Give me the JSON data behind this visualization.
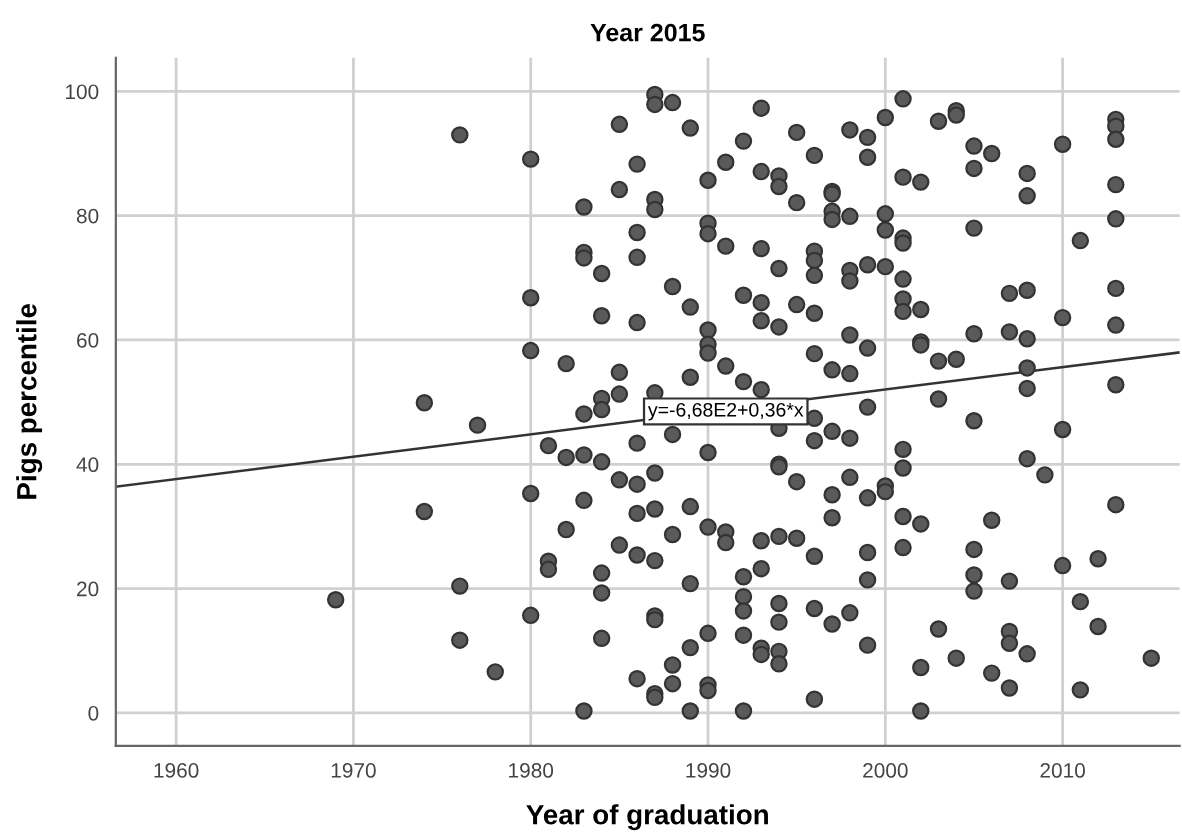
{
  "chart_data": {
    "type": "scatter",
    "title": "Year 2015",
    "xlabel": "Year of graduation",
    "ylabel": "Pigs percentile",
    "xlim": [
      1956.6,
      2016.6
    ],
    "xticks": [
      1960,
      1970,
      1980,
      1990,
      2000,
      2010
    ],
    "ylim": [
      -5.3,
      105.4
    ],
    "yticks": [
      0,
      20,
      40,
      60,
      80,
      100
    ],
    "grid": true,
    "legend": false,
    "annotations": [
      {
        "text": "y=-6,68E2+0,36*x",
        "x": 1991,
        "y": 48.5
      }
    ],
    "series": [
      {
        "marker": "circle",
        "color": "#5a5a5a",
        "x": [
          1969,
          1974,
          1974,
          1976,
          1976,
          1976,
          1977,
          1978,
          1980,
          1980,
          1980,
          1980,
          1980,
          1981,
          1981,
          1981,
          1982,
          1982,
          1982,
          1983,
          1983,
          1983,
          1983,
          1983,
          1983,
          1983,
          1984,
          1984,
          1984,
          1984,
          1984,
          1984,
          1984,
          1984,
          1985,
          1985,
          1985,
          1985,
          1985,
          1985,
          1986,
          1986,
          1986,
          1986,
          1986,
          1986,
          1986,
          1986,
          1986,
          1987,
          1987,
          1987,
          1987,
          1987,
          1987,
          1987,
          1987,
          1987,
          1987,
          1987,
          1987,
          1988,
          1988,
          1988,
          1988,
          1988,
          1988,
          1989,
          1989,
          1989,
          1989,
          1989,
          1989,
          1989,
          1990,
          1990,
          1990,
          1990,
          1990,
          1990,
          1990,
          1990,
          1990,
          1990,
          1990,
          1991,
          1991,
          1991,
          1991,
          1991,
          1992,
          1992,
          1992,
          1992,
          1992,
          1992,
          1992,
          1992,
          1993,
          1993,
          1993,
          1993,
          1993,
          1993,
          1993,
          1993,
          1993,
          1993,
          1994,
          1994,
          1994,
          1994,
          1994,
          1994,
          1994,
          1994,
          1994,
          1994,
          1994,
          1994,
          1995,
          1995,
          1995,
          1995,
          1995,
          1996,
          1996,
          1996,
          1996,
          1996,
          1996,
          1996,
          1996,
          1996,
          1996,
          1996,
          1997,
          1997,
          1997,
          1997,
          1997,
          1997,
          1997,
          1997,
          1997,
          1998,
          1998,
          1998,
          1998,
          1998,
          1998,
          1998,
          1998,
          1998,
          1999,
          1999,
          1999,
          1999,
          1999,
          1999,
          1999,
          1999,
          1999,
          2000,
          2000,
          2000,
          2000,
          2000,
          2000,
          2001,
          2001,
          2001,
          2001,
          2001,
          2001,
          2001,
          2001,
          2001,
          2001,
          2001,
          2002,
          2002,
          2002,
          2002,
          2002,
          2002,
          2002,
          2003,
          2003,
          2003,
          2003,
          2004,
          2004,
          2004,
          2004,
          2005,
          2005,
          2005,
          2005,
          2005,
          2005,
          2005,
          2005,
          2006,
          2006,
          2006,
          2007,
          2007,
          2007,
          2007,
          2007,
          2007,
          2008,
          2008,
          2008,
          2008,
          2008,
          2008,
          2008,
          2008,
          2009,
          2010,
          2010,
          2010,
          2010,
          2011,
          2011,
          2011,
          2012,
          2012,
          2013,
          2013,
          2013,
          2013,
          2013,
          2013,
          2013,
          2013,
          2013,
          2015
        ],
        "values": [
          18.2,
          49.9,
          32.4,
          93.0,
          20.4,
          11.7,
          46.3,
          6.6,
          89.1,
          66.8,
          58.3,
          35.3,
          15.7,
          43.0,
          24.4,
          23.1,
          56.2,
          41.1,
          29.5,
          81.4,
          74.1,
          73.2,
          48.1,
          41.5,
          34.2,
          0.3,
          70.7,
          63.9,
          50.6,
          48.8,
          40.4,
          22.5,
          19.3,
          12.0,
          94.7,
          84.2,
          54.8,
          51.3,
          37.5,
          27.0,
          88.3,
          77.3,
          73.3,
          62.8,
          43.4,
          36.8,
          32.1,
          25.4,
          5.5,
          99.5,
          97.9,
          82.6,
          81.0,
          51.5,
          38.6,
          32.8,
          24.5,
          15.6,
          15.0,
          3.1,
          2.5,
          98.2,
          68.6,
          44.8,
          28.7,
          7.7,
          4.7,
          94.1,
          65.3,
          54.0,
          33.2,
          20.8,
          10.5,
          0.3,
          85.7,
          78.8,
          77.1,
          61.6,
          59.3,
          57.9,
          41.9,
          29.9,
          12.8,
          4.5,
          3.6,
          88.6,
          75.1,
          55.8,
          29.1,
          27.4,
          92.0,
          67.2,
          53.3,
          21.9,
          18.7,
          16.4,
          12.5,
          0.3,
          97.3,
          87.1,
          74.7,
          66.0,
          63.1,
          52.0,
          27.7,
          23.2,
          10.4,
          9.4,
          86.4,
          84.7,
          71.5,
          62.1,
          45.8,
          40.0,
          39.6,
          28.4,
          17.6,
          14.6,
          9.9,
          7.9,
          93.4,
          82.1,
          65.7,
          37.2,
          28.1,
          89.7,
          74.3,
          72.8,
          70.4,
          64.3,
          57.8,
          47.4,
          43.8,
          25.2,
          16.8,
          2.2,
          83.9,
          83.5,
          80.7,
          79.4,
          55.2,
          45.3,
          35.1,
          31.4,
          14.3,
          93.8,
          79.9,
          71.2,
          69.5,
          60.8,
          54.6,
          44.2,
          37.9,
          16.1,
          92.6,
          89.4,
          72.1,
          58.7,
          49.2,
          34.6,
          25.8,
          21.4,
          10.9,
          95.8,
          80.3,
          77.7,
          71.8,
          36.5,
          35.6,
          98.8,
          86.2,
          76.4,
          75.6,
          69.8,
          66.6,
          64.6,
          42.4,
          39.4,
          31.6,
          26.6,
          85.4,
          64.9,
          59.7,
          59.2,
          30.4,
          7.3,
          0.3,
          95.2,
          56.6,
          50.5,
          13.5,
          96.9,
          96.2,
          56.9,
          8.8,
          91.2,
          87.6,
          78.0,
          61.0,
          47.0,
          26.3,
          22.2,
          19.6,
          90.0,
          31.0,
          6.4,
          67.5,
          61.3,
          21.2,
          13.1,
          11.2,
          4.0,
          86.8,
          83.2,
          68.0,
          60.2,
          55.5,
          52.2,
          40.9,
          9.5,
          38.3,
          91.5,
          63.6,
          45.6,
          23.7,
          76.0,
          17.9,
          3.7,
          24.8,
          13.9,
          95.5,
          94.4,
          92.3,
          85.0,
          79.5,
          68.3,
          62.4,
          52.8,
          33.5,
          8.8
        ]
      },
      {
        "type": "line",
        "color": "#333333",
        "x": [
          1956.6,
          2016.6
        ],
        "values": [
          36.4,
          58.0
        ]
      }
    ]
  }
}
